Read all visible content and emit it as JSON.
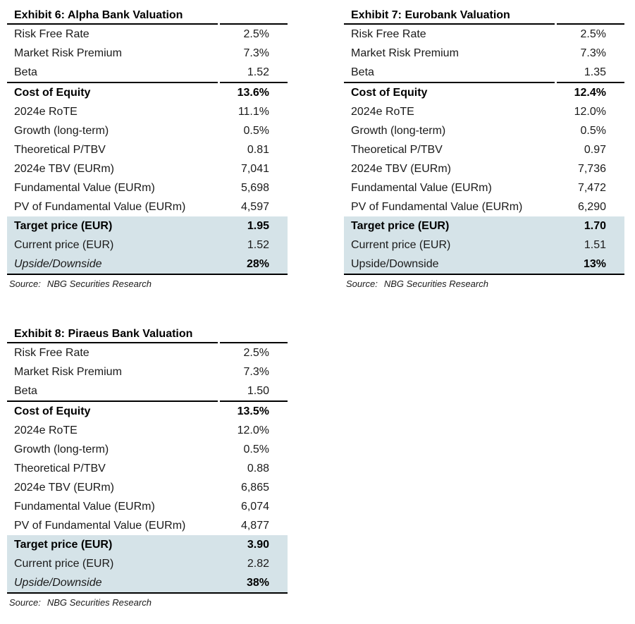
{
  "colors": {
    "highlight": "#d5e3e8",
    "rule": "#000000"
  },
  "exhibits": [
    {
      "title": "Exhibit 6: Alpha Bank Valuation",
      "source_label": "Source:",
      "source": "NBG Securities Research",
      "rows": [
        {
          "label": "Risk Free Rate",
          "value": "2.5%"
        },
        {
          "label": "Market Risk Premium",
          "value": "7.3%"
        },
        {
          "label": "Beta",
          "value": "1.52",
          "rule_below": true
        },
        {
          "label": "Cost of Equity",
          "value": "13.6%",
          "bold": true
        },
        {
          "label": "2024e RoTE",
          "value": "11.1%"
        },
        {
          "label": "Growth (long-term)",
          "value": "0.5%"
        },
        {
          "label": "Theoretical P/TBV",
          "value": "0.81"
        },
        {
          "label": "2024e TBV (EURm)",
          "value": "7,041"
        },
        {
          "label": "Fundamental Value (EURm)",
          "value": "5,698"
        },
        {
          "label": "PV of Fundamental Value (EURm)",
          "value": "4,597"
        },
        {
          "label": "Target price (EUR)",
          "value": "1.95",
          "bold": true,
          "highlight": true
        },
        {
          "label": "Current price (EUR)",
          "value": "1.52",
          "highlight": true
        },
        {
          "label": "Upside/Downside",
          "value": "28%",
          "italic_label": true,
          "bold_value": true,
          "highlight": true,
          "last": true
        }
      ]
    },
    {
      "title": "Exhibit 7: Eurobank Valuation",
      "source_label": "Source:",
      "source": "NBG Securities Research",
      "rows": [
        {
          "label": "Risk Free Rate",
          "value": "2.5%"
        },
        {
          "label": "Market Risk Premium",
          "value": "7.3%"
        },
        {
          "label": "Beta",
          "value": "1.35",
          "rule_below": true
        },
        {
          "label": "Cost of Equity",
          "value": "12.4%",
          "bold": true
        },
        {
          "label": "2024e RoTE",
          "value": "12.0%"
        },
        {
          "label": "Growth (long-term)",
          "value": "0.5%"
        },
        {
          "label": "Theoretical P/TBV",
          "value": "0.97"
        },
        {
          "label": "2024e TBV (EURm)",
          "value": "7,736"
        },
        {
          "label": "Fundamental Value (EURm)",
          "value": "7,472"
        },
        {
          "label": "PV of Fundamental Value (EURm)",
          "value": "6,290"
        },
        {
          "label": "Target price (EUR)",
          "value": "1.70",
          "bold": true,
          "highlight": true
        },
        {
          "label": "Current price (EUR)",
          "value": "1.51",
          "highlight": true
        },
        {
          "label": "Upside/Downside",
          "value": "13%",
          "bold_value": true,
          "highlight": true,
          "last": true
        }
      ]
    },
    {
      "title": "Exhibit 8: Piraeus Bank Valuation",
      "source_label": "Source:",
      "source": "NBG Securities Research",
      "rows": [
        {
          "label": "Risk Free Rate",
          "value": "2.5%"
        },
        {
          "label": "Market Risk Premium",
          "value": "7.3%"
        },
        {
          "label": "Beta",
          "value": "1.50",
          "rule_below": true
        },
        {
          "label": "Cost of Equity",
          "value": "13.5%",
          "bold": true
        },
        {
          "label": "2024e RoTE",
          "value": "12.0%"
        },
        {
          "label": "Growth (long-term)",
          "value": "0.5%"
        },
        {
          "label": "Theoretical P/TBV",
          "value": "0.88"
        },
        {
          "label": "2024e TBV (EURm)",
          "value": "6,865"
        },
        {
          "label": "Fundamental Value (EURm)",
          "value": "6,074"
        },
        {
          "label": "PV of Fundamental Value (EURm)",
          "value": "4,877"
        },
        {
          "label": "Target price (EUR)",
          "value": "3.90",
          "bold": true,
          "highlight": true
        },
        {
          "label": "Current price (EUR)",
          "value": "2.82",
          "highlight": true
        },
        {
          "label": "Upside/Downside",
          "value": "38%",
          "italic_label": true,
          "bold_value": true,
          "highlight": true,
          "last": true
        }
      ]
    }
  ]
}
